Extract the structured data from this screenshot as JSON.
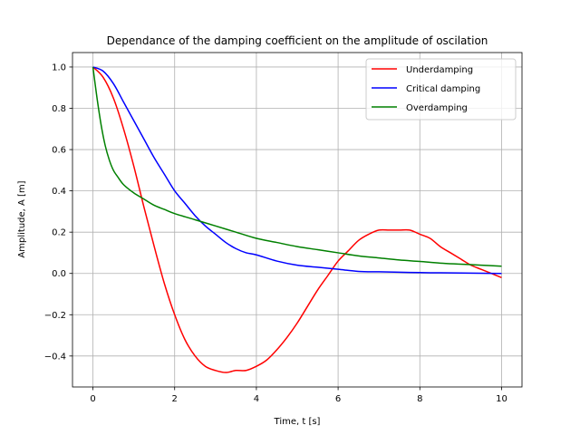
{
  "chart_data": {
    "type": "line",
    "title": "Dependance of the damping coefficient on the amplitude of oscilation",
    "xlabel": "Time, t [s]",
    "ylabel": "Amplitude, A [m]",
    "xlim": [
      -0.5,
      10.5
    ],
    "ylim": [
      -0.55,
      1.07
    ],
    "xticks": [
      0,
      2,
      4,
      6,
      8,
      10
    ],
    "yticks": [
      -0.4,
      -0.2,
      0.0,
      0.2,
      0.4,
      0.6,
      0.8,
      1.0
    ],
    "xtick_labels": [
      "0",
      "2",
      "4",
      "6",
      "8",
      "10"
    ],
    "ytick_labels": [
      "−0.4",
      "−0.2",
      "0.0",
      "0.2",
      "0.4",
      "0.6",
      "0.8",
      "1.0"
    ],
    "grid": true,
    "legend_position": "top-right",
    "series": [
      {
        "name": "Underdamping",
        "color": "#ff0000",
        "x": [
          0,
          0.25,
          0.5,
          0.75,
          1.0,
          1.25,
          1.5,
          1.75,
          2.0,
          2.25,
          2.5,
          2.75,
          3.0,
          3.25,
          3.5,
          3.75,
          4.0,
          4.25,
          4.5,
          4.75,
          5.0,
          5.25,
          5.5,
          5.75,
          6.0,
          6.25,
          6.5,
          6.75,
          7.0,
          7.25,
          7.5,
          7.75,
          8.0,
          8.25,
          8.5,
          8.75,
          9.0,
          9.25,
          9.5,
          9.75,
          10.0
        ],
        "y": [
          1.0,
          0.95,
          0.85,
          0.7,
          0.52,
          0.32,
          0.13,
          -0.05,
          -0.2,
          -0.32,
          -0.4,
          -0.45,
          -0.47,
          -0.48,
          -0.47,
          -0.47,
          -0.45,
          -0.42,
          -0.37,
          -0.31,
          -0.24,
          -0.16,
          -0.08,
          -0.01,
          0.06,
          0.11,
          0.16,
          0.19,
          0.21,
          0.21,
          0.21,
          0.21,
          0.19,
          0.17,
          0.13,
          0.1,
          0.07,
          0.04,
          0.02,
          0.0,
          -0.02
        ]
      },
      {
        "name": "Critical damping",
        "color": "#0000ff",
        "x": [
          0,
          0.25,
          0.5,
          0.75,
          1.0,
          1.25,
          1.5,
          1.75,
          2.0,
          2.25,
          2.5,
          2.75,
          3.0,
          3.25,
          3.5,
          3.75,
          4.0,
          4.5,
          5.0,
          5.5,
          6.0,
          6.5,
          7.0,
          7.5,
          8.0,
          8.5,
          9.0,
          9.5,
          10.0
        ],
        "y": [
          1.0,
          0.98,
          0.92,
          0.83,
          0.74,
          0.65,
          0.56,
          0.48,
          0.4,
          0.34,
          0.28,
          0.23,
          0.19,
          0.15,
          0.12,
          0.1,
          0.09,
          0.06,
          0.04,
          0.03,
          0.02,
          0.01,
          0.008,
          0.006,
          0.004,
          0.003,
          0.002,
          0.001,
          0.0
        ]
      },
      {
        "name": "Overdamping",
        "color": "#008000",
        "x": [
          0,
          0.1,
          0.2,
          0.3,
          0.4,
          0.5,
          0.6,
          0.75,
          1.0,
          1.25,
          1.5,
          1.75,
          2.0,
          2.5,
          3.0,
          3.5,
          4.0,
          4.5,
          5.0,
          5.5,
          6.0,
          6.5,
          7.0,
          7.5,
          8.0,
          8.5,
          9.0,
          9.5,
          10.0
        ],
        "y": [
          1.0,
          0.85,
          0.72,
          0.62,
          0.55,
          0.5,
          0.47,
          0.43,
          0.39,
          0.36,
          0.33,
          0.31,
          0.29,
          0.26,
          0.23,
          0.2,
          0.17,
          0.15,
          0.13,
          0.115,
          0.1,
          0.085,
          0.075,
          0.065,
          0.058,
          0.05,
          0.045,
          0.04,
          0.035
        ]
      }
    ]
  }
}
